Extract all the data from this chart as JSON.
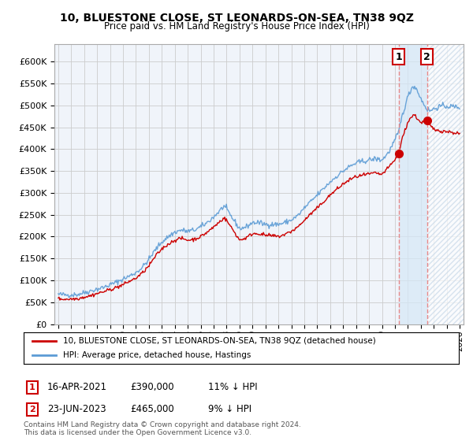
{
  "title": "10, BLUESTONE CLOSE, ST LEONARDS-ON-SEA, TN38 9QZ",
  "subtitle": "Price paid vs. HM Land Registry's House Price Index (HPI)",
  "legend_line1": "10, BLUESTONE CLOSE, ST LEONARDS-ON-SEA, TN38 9QZ (detached house)",
  "legend_line2": "HPI: Average price, detached house, Hastings",
  "annotation1_label": "1",
  "annotation1_date": "16-APR-2021",
  "annotation1_price": "£390,000",
  "annotation1_hpi": "11% ↓ HPI",
  "annotation1_year": 2021.29,
  "annotation1_value": 390000,
  "annotation2_label": "2",
  "annotation2_date": "23-JUN-2023",
  "annotation2_price": "£465,000",
  "annotation2_hpi": "9% ↓ HPI",
  "annotation2_year": 2023.48,
  "annotation2_value": 465000,
  "yticks": [
    0,
    50000,
    100000,
    150000,
    200000,
    250000,
    300000,
    350000,
    400000,
    450000,
    500000,
    550000,
    600000
  ],
  "ylim": [
    0,
    640000
  ],
  "xlim_start": 1994.7,
  "xlim_end": 2026.3,
  "footer": "Contains HM Land Registry data © Crown copyright and database right 2024.\nThis data is licensed under the Open Government Licence v3.0.",
  "line_color_red": "#cc0000",
  "line_color_blue": "#5b9bd5",
  "shade_color": "#d6e8f7",
  "hatch_color": "#c8d8e8",
  "grid_color": "#cccccc",
  "bg_color": "#f0f4fa",
  "vline_color": "#e88888"
}
